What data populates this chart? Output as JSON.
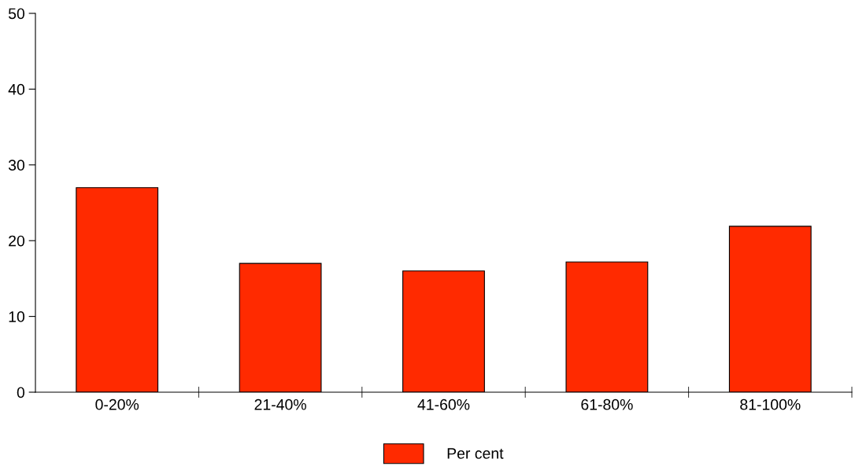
{
  "chart_data": {
    "type": "bar",
    "categories": [
      "0-20%",
      "21-40%",
      "41-60%",
      "61-80%",
      "81-100%"
    ],
    "series": [
      {
        "name": "Per cent",
        "color": "#ff2a00",
        "values": [
          27,
          17,
          16,
          17.2,
          21.9
        ]
      }
    ],
    "ylim": [
      0,
      50
    ],
    "yticks": [
      0,
      10,
      20,
      30,
      40,
      50
    ],
    "grid": false,
    "legend": "bottom"
  }
}
